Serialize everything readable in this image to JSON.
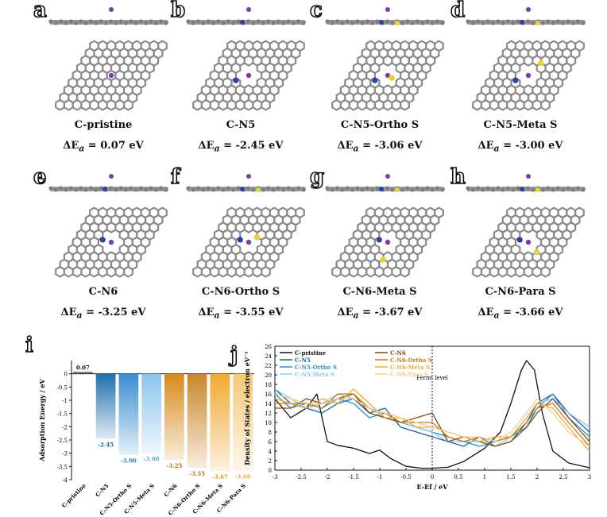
{
  "structures": [
    {
      "letter": "a",
      "name": "C-pristine",
      "energy_label": "ΔEa = 0.07 eV",
      "energy_value": "0.07"
    },
    {
      "letter": "b",
      "name": "C-N5",
      "energy_label": "ΔEa = -2.45 eV",
      "energy_value": "-2.45"
    },
    {
      "letter": "c",
      "name": "C-N5-Ortho S",
      "energy_label": "ΔEa = -3.06 eV",
      "energy_value": "-3.06"
    },
    {
      "letter": "d",
      "name": "C-N5-Meta S",
      "energy_label": "ΔEa = -3.00 eV",
      "energy_value": "-3.00"
    },
    {
      "letter": "e",
      "name": "C-N6",
      "energy_label": "ΔEa = -3.25 eV",
      "energy_value": "-3.25"
    },
    {
      "letter": "f",
      "name": "C-N6-Ortho S",
      "energy_label": "ΔEa = -3.55 eV",
      "energy_value": "-3.55"
    },
    {
      "letter": "g",
      "name": "C-N6-Meta S",
      "energy_label": "ΔEa = -3.67 eV",
      "energy_value": "-3.67"
    },
    {
      "letter": "h",
      "name": "C-N6-Para S",
      "energy_label": "ΔEa = -3.66 eV",
      "energy_value": "-3.66"
    }
  ],
  "energy_prefix": "ΔE",
  "energy_sub": "a",
  "energy_unit": " eV",
  "colors": {
    "carbon": "#8c8c8c",
    "nitrogen": "#2f3fa8",
    "sulfur": "#e8d23a",
    "potassium": "#7b3fa8"
  },
  "chart_data": [
    {
      "panel": "i",
      "type": "bar",
      "ylabel": "Adsorption Energy / eV",
      "ylim": [
        -4,
        0.5
      ],
      "yticks": [
        "0",
        "-0.5",
        "-1",
        "-1.5",
        "-2",
        "-2.5",
        "-3",
        "-3.5",
        "-4"
      ],
      "categories": [
        "C-pristine",
        "C-N5",
        "C-N5-Ortho S",
        "C-N5-Meta S",
        "C-N6",
        "C-N6-Ortho S",
        "C-N6-Meta S",
        "C-N6-Para S"
      ],
      "values": [
        0.07,
        -2.45,
        -3.06,
        -3.0,
        -3.25,
        -3.55,
        -3.67,
        -3.66
      ],
      "value_labels": [
        "0.07",
        "-2.45",
        "-3.06",
        "-3.00",
        "-3.25",
        "-3.55",
        "-3.67",
        "-3.66"
      ],
      "bar_colors": [
        "#333333",
        "#1f6fb0",
        "#3a8fd0",
        "#8cc4ec",
        "#d98a1c",
        "#c8862a",
        "#f0a830",
        "#f5c878"
      ],
      "label_colors": [
        "#111111",
        "#1f5f9a",
        "#2e7cc0",
        "#5ea6d8",
        "#b86a10",
        "#c07a20",
        "#e09a20",
        "#e8b050"
      ]
    },
    {
      "panel": "j",
      "type": "line",
      "xlabel": "E-Ef / eV",
      "ylabel": "Density of States / electron eV⁻¹",
      "xlim": [
        -3,
        3
      ],
      "ylim": [
        0,
        26
      ],
      "xticks": [
        "-3",
        "-2.5",
        "-2",
        "-1.5",
        "-1",
        "-0.5",
        "0",
        "0.5",
        "1",
        "1.5",
        "2",
        "2.5",
        "3"
      ],
      "yticks": [
        "0",
        "2",
        "4",
        "6",
        "8",
        "10",
        "12",
        "14",
        "16",
        "18",
        "20",
        "22",
        "24",
        "26"
      ],
      "annotation": "Fermi level",
      "legend_position": "top",
      "series": [
        {
          "name": "C-pristine",
          "color": "#111111",
          "x": [
            -3,
            -2.7,
            -2.4,
            -2.2,
            -2.0,
            -1.8,
            -1.5,
            -1.2,
            -1.0,
            -0.8,
            -0.5,
            -0.2,
            0,
            0.3,
            0.6,
            1.0,
            1.3,
            1.5,
            1.7,
            1.8,
            1.95,
            2.1,
            2.3,
            2.6,
            3
          ],
          "y": [
            15,
            11,
            13,
            16,
            6,
            5.2,
            4.6,
            3.5,
            4.2,
            2.5,
            0.8,
            0.4,
            0.4,
            0.6,
            1.8,
            4.6,
            8,
            14,
            21,
            23,
            21,
            12,
            4,
            1.5,
            0.5
          ]
        },
        {
          "name": "C-N5",
          "color": "#1f5f9a",
          "x": [
            -3,
            -2.7,
            -2.4,
            -2.1,
            -1.8,
            -1.5,
            -1.2,
            -0.9,
            -0.6,
            -0.3,
            0,
            0.3,
            0.6,
            0.9,
            1.2,
            1.5,
            1.8,
            2.0,
            2.3,
            2.6,
            3
          ],
          "y": [
            17,
            14,
            13,
            12,
            14,
            15,
            12,
            13,
            9,
            8,
            7,
            6,
            5,
            7,
            5,
            6,
            10,
            14,
            16,
            12,
            8
          ]
        },
        {
          "name": "C-N5-Ortho S",
          "color": "#2e8fd0",
          "x": [
            -3,
            -2.7,
            -2.4,
            -2.1,
            -1.8,
            -1.5,
            -1.2,
            -0.9,
            -0.6,
            -0.3,
            0,
            0.3,
            0.6,
            0.9,
            1.2,
            1.5,
            1.8,
            2.0,
            2.3,
            2.6,
            3
          ],
          "y": [
            16,
            13,
            14,
            13,
            15,
            14,
            11,
            12,
            10,
            9,
            8,
            7,
            6,
            5,
            6,
            7,
            9,
            13,
            16,
            11,
            7
          ]
        },
        {
          "name": "C-N5-Meta S",
          "color": "#8cc4ec",
          "x": [
            -3,
            -2.7,
            -2.4,
            -2.1,
            -1.8,
            -1.5,
            -1.2,
            -0.9,
            -0.6,
            -0.3,
            0,
            0.3,
            0.6,
            0.9,
            1.2,
            1.5,
            1.8,
            2.0,
            2.3,
            2.6,
            3
          ],
          "y": [
            17,
            15,
            13,
            14,
            16,
            15,
            13,
            11,
            10,
            9,
            8,
            6,
            6,
            6,
            5,
            7,
            11,
            14,
            15,
            12,
            9
          ]
        },
        {
          "name": "C-N6",
          "color": "#8a4a10",
          "x": [
            -3,
            -2.7,
            -2.4,
            -2.1,
            -1.8,
            -1.5,
            -1.2,
            -0.9,
            -0.6,
            -0.3,
            0,
            0.3,
            0.6,
            0.9,
            1.2,
            1.5,
            1.8,
            2.0,
            2.3,
            2.6,
            3
          ],
          "y": [
            13,
            13,
            15,
            14,
            15,
            16,
            12,
            11,
            10,
            11,
            12,
            6,
            7,
            6,
            5,
            6,
            9,
            12,
            15,
            11,
            6
          ]
        },
        {
          "name": "C-N6-Ortho S",
          "color": "#c07a20",
          "x": [
            -3,
            -2.7,
            -2.4,
            -2.1,
            -1.8,
            -1.5,
            -1.2,
            -0.9,
            -0.6,
            -0.3,
            0,
            0.3,
            0.6,
            0.9,
            1.2,
            1.5,
            1.8,
            2.0,
            2.3,
            2.6,
            3
          ],
          "y": [
            14,
            14,
            14,
            13,
            16,
            16,
            13,
            12,
            10,
            10,
            10,
            7,
            6,
            7,
            6,
            7,
            10,
            13,
            14,
            10,
            5
          ]
        },
        {
          "name": "C-N6-Meta S",
          "color": "#f0a830",
          "x": [
            -3,
            -2.7,
            -2.4,
            -2.1,
            -1.8,
            -1.5,
            -1.2,
            -0.9,
            -0.6,
            -0.3,
            0,
            0.3,
            0.6,
            0.9,
            1.2,
            1.5,
            1.8,
            2.0,
            2.3,
            2.6,
            3
          ],
          "y": [
            15,
            14,
            13,
            15,
            14,
            17,
            14,
            11,
            11,
            9,
            9,
            8,
            7,
            6,
            7,
            7,
            11,
            14,
            13,
            9,
            4
          ]
        },
        {
          "name": "C-N6-Para S",
          "color": "#f5cc8a",
          "x": [
            -3,
            -2.7,
            -2.4,
            -2.1,
            -1.8,
            -1.5,
            -1.2,
            -0.9,
            -0.6,
            -0.3,
            0,
            0.3,
            0.6,
            0.9,
            1.2,
            1.5,
            1.8,
            2.0,
            2.3,
            2.6,
            3
          ],
          "y": [
            16,
            15,
            14,
            14,
            15,
            15,
            13,
            12,
            11,
            10,
            9,
            8,
            7,
            7,
            6,
            8,
            12,
            15,
            12,
            8,
            5
          ]
        }
      ]
    }
  ]
}
